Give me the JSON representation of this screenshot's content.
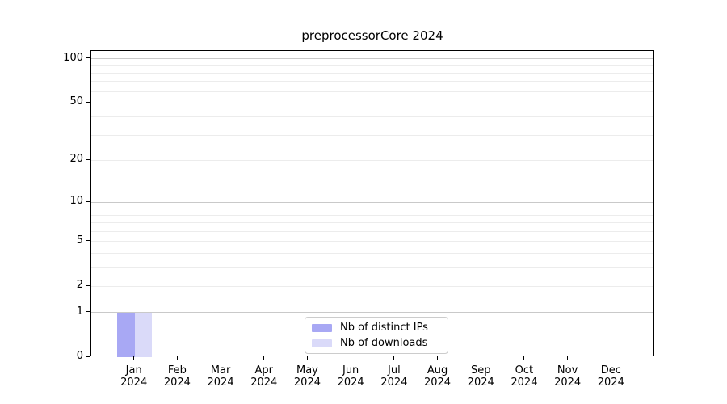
{
  "figure": {
    "background": "#ffffff"
  },
  "chart_data": {
    "type": "bar",
    "title": "preprocessorCore 2024",
    "xlabel": "",
    "ylabel": "",
    "categories": [
      {
        "month": "Jan",
        "year": "2024"
      },
      {
        "month": "Feb",
        "year": "2024"
      },
      {
        "month": "Mar",
        "year": "2024"
      },
      {
        "month": "Apr",
        "year": "2024"
      },
      {
        "month": "May",
        "year": "2024"
      },
      {
        "month": "Jun",
        "year": "2024"
      },
      {
        "month": "Jul",
        "year": "2024"
      },
      {
        "month": "Aug",
        "year": "2024"
      },
      {
        "month": "Sep",
        "year": "2024"
      },
      {
        "month": "Oct",
        "year": "2024"
      },
      {
        "month": "Nov",
        "year": "2024"
      },
      {
        "month": "Dec",
        "year": "2024"
      }
    ],
    "series": [
      {
        "name": "Nb of distinct IPs",
        "color": "#a8a8f4",
        "values": [
          1,
          0,
          0,
          0,
          0,
          0,
          0,
          0,
          0,
          0,
          0,
          0
        ]
      },
      {
        "name": "Nb of downloads",
        "color": "#dadaf9",
        "values": [
          1,
          0,
          0,
          0,
          0,
          0,
          0,
          0,
          0,
          0,
          0,
          0
        ]
      }
    ],
    "y_axis": {
      "scale": "log1p",
      "ylim": [
        0,
        113
      ],
      "ticks": [
        0,
        1,
        2,
        5,
        10,
        20,
        50,
        100
      ],
      "major_gridlines": [
        1,
        10,
        100
      ],
      "minor_gridlines": [
        2,
        3,
        4,
        5,
        6,
        7,
        8,
        9,
        20,
        30,
        40,
        50,
        60,
        70,
        80,
        90
      ]
    },
    "legend": {
      "position": "bottom-center",
      "entries": [
        "Nb of distinct IPs",
        "Nb of downloads"
      ]
    },
    "grid": true,
    "colors": {
      "major_grid": "#c9c9c9",
      "minor_grid": "#ececec",
      "spine": "#000000",
      "text": "#000000",
      "legend_border": "#cccccc"
    }
  }
}
